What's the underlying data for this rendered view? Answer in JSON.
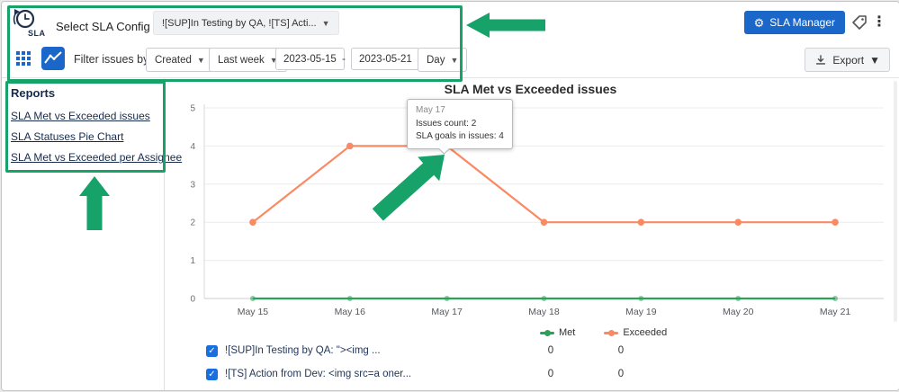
{
  "header": {
    "logo_text": "SLA",
    "select_config_label": "Select SLA Config",
    "config_selected": "![SUP]In Testing by QA, ![TS] Acti...",
    "sla_manager_label": "SLA Manager"
  },
  "toolbar": {
    "filter_label": "Filter issues by:",
    "field_select": "Created",
    "range_select": "Last week",
    "date_from": "2023-05-15",
    "date_separator": "-",
    "date_to": "2023-05-21",
    "granularity_select": "Day",
    "export_label": "Export"
  },
  "sidebar": {
    "title": "Reports",
    "items": [
      {
        "label": "SLA Met vs Exceeded issues"
      },
      {
        "label": "SLA Statuses Pie Chart"
      },
      {
        "label": "SLA Met vs Exceeded per Assignee"
      }
    ]
  },
  "chart_data": {
    "type": "line",
    "title": "SLA Met vs Exceeded issues",
    "categories": [
      "May 15",
      "May 16",
      "May 17",
      "May 18",
      "May 19",
      "May 20",
      "May 21"
    ],
    "series": [
      {
        "name": "Met",
        "color": "#2fa05c",
        "values": [
          0,
          0,
          0,
          0,
          0,
          0,
          0
        ]
      },
      {
        "name": "Exceeded",
        "color": "#f98a64",
        "values": [
          2,
          4,
          4,
          2,
          2,
          2,
          2
        ]
      }
    ],
    "ylim": [
      0,
      5
    ],
    "yticks": [
      0,
      1,
      2,
      3,
      4,
      5
    ],
    "grid": true,
    "legend_position": "bottom",
    "highlight_series": "Exceeded",
    "highlight_index": 2
  },
  "tooltip": {
    "title": "May 17",
    "issues_count": "Issues count: 2",
    "sla_goals": "SLA goals in issues: 4"
  },
  "issues": {
    "rows": [
      {
        "label": "![SUP]In Testing by QA: \"><img ...",
        "met": "0",
        "exceeded": "0",
        "checked": true
      },
      {
        "label": "![TS] Action from Dev: <img src=a oner...",
        "met": "0",
        "exceeded": "0",
        "checked": true
      }
    ]
  },
  "colors": {
    "annotation_green": "#16a269",
    "button_blue": "#1b66c9",
    "checkbox_blue": "#1a6fe0",
    "met_green": "#2fa05c",
    "exceeded_orange": "#f98a64"
  }
}
